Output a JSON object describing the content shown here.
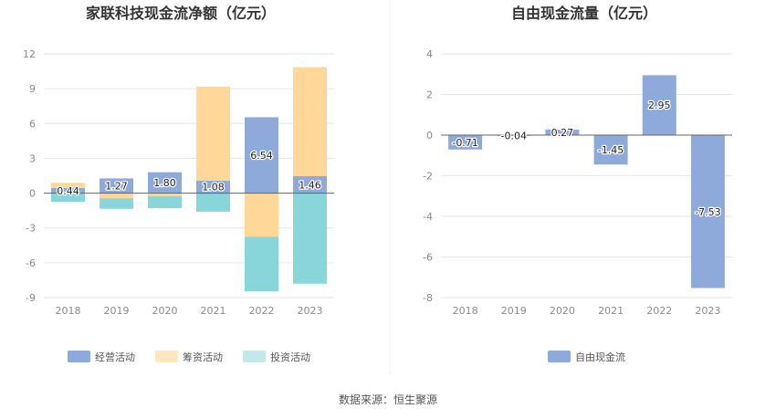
{
  "source_label": "数据来源：恒生聚源",
  "chart_data": [
    {
      "type": "bar",
      "stacked": true,
      "title": "家联科技现金流净额（亿元）",
      "categories": [
        "2018",
        "2019",
        "2020",
        "2021",
        "2022",
        "2023"
      ],
      "ylim": [
        -9,
        12
      ],
      "yticks": [
        12,
        9,
        6,
        3,
        0,
        -3,
        -6,
        -9
      ],
      "grid": true,
      "legend": "bottom",
      "series": [
        {
          "name": "经营活动",
          "color": "#8eaadb",
          "values": [
            0.44,
            1.27,
            1.8,
            1.08,
            6.54,
            1.46
          ],
          "labels": [
            "0.44",
            "1.27",
            "1.80",
            "1.08",
            "6.54",
            "1.46"
          ]
        },
        {
          "name": "筹资活动",
          "color": "#ffd899",
          "legend_color": "#fde6c0",
          "values": [
            0.45,
            -0.45,
            -0.25,
            8.1,
            -3.75,
            9.4
          ]
        },
        {
          "name": "投资活动",
          "color": "#88d6d9",
          "legend_color": "#c2e9ea",
          "values": [
            -0.75,
            -0.9,
            -1.05,
            -1.6,
            -4.7,
            -7.8
          ]
        }
      ]
    },
    {
      "type": "bar",
      "title": "自由现金流量（亿元）",
      "categories": [
        "2018",
        "2019",
        "2020",
        "2021",
        "2022",
        "2023"
      ],
      "ylim": [
        -8,
        4
      ],
      "yticks": [
        4,
        2,
        0,
        -2,
        -4,
        -6,
        -8
      ],
      "grid": true,
      "legend": "bottom",
      "series": [
        {
          "name": "自由现金流",
          "color": "#8eaadb",
          "values": [
            -0.71,
            -0.04,
            0.27,
            -1.45,
            2.95,
            -7.53
          ],
          "labels": [
            "-0.71",
            "-0.04",
            "0.27",
            "-1.45",
            "2.95",
            "-7.53"
          ]
        }
      ]
    }
  ]
}
